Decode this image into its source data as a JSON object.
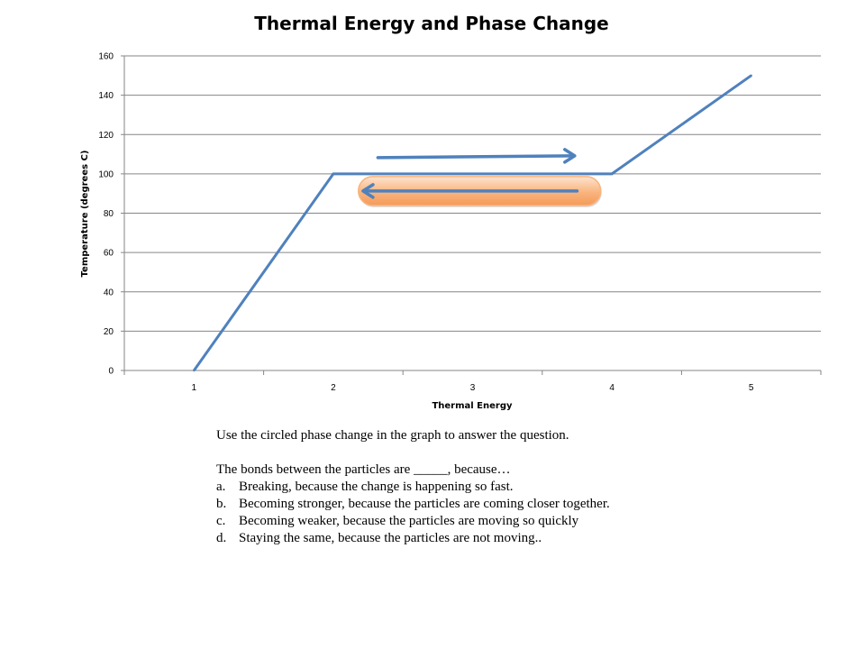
{
  "chart_data": {
    "type": "line",
    "title": "Thermal Energy and Phase Change",
    "xlabel": "Thermal Energy",
    "ylabel": "Temperature (degrees C)",
    "categories": [
      "1",
      "2",
      "3",
      "4",
      "5"
    ],
    "x": [
      1,
      2,
      4,
      5
    ],
    "y": [
      0,
      100,
      100,
      150
    ],
    "ylim": [
      0,
      160
    ],
    "y_ticks": [
      "0",
      "20",
      "40",
      "60",
      "80",
      "100",
      "120",
      "140",
      "160"
    ],
    "grid": "horizontal",
    "line_color": "#4F81BD",
    "annotations": [
      {
        "type": "arrow",
        "direction": "right",
        "color": "#4F81BD"
      },
      {
        "type": "arrow",
        "direction": "left",
        "color": "#4F81BD",
        "highlight_color": "#F9B47E",
        "circled": true
      }
    ]
  },
  "question": {
    "prompt": "Use the circled phase change in the graph to answer the question.",
    "stem": "The bonds between the particles are _____, because…",
    "options": [
      {
        "letter": "a.",
        "text": "Breaking, because the change is happening so fast."
      },
      {
        "letter": "b.",
        "text": "Becoming stronger, because the particles are coming closer together."
      },
      {
        "letter": "c.",
        "text": "Becoming weaker, because the particles are moving so quickly"
      },
      {
        "letter": "d.",
        "text": "Staying the same, because the particles are not moving.."
      }
    ]
  }
}
